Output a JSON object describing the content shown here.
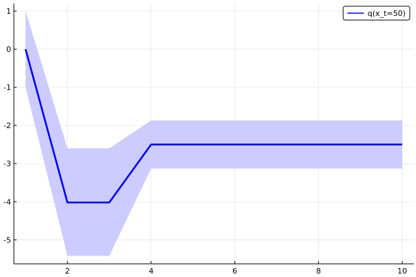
{
  "chart_data": {
    "type": "line",
    "title": "",
    "xlabel": "",
    "ylabel": "",
    "xlim": [
      0.72,
      10.28
    ],
    "ylim": [
      -5.63,
      1.2
    ],
    "grid": true,
    "legend_position": "top-right",
    "x_ticks": [
      2,
      4,
      6,
      8,
      10
    ],
    "x_tick_labels": [
      "2",
      "4",
      "6",
      "8",
      "10"
    ],
    "y_ticks": [
      1,
      0,
      -1,
      -2,
      -3,
      -4,
      -5
    ],
    "y_tick_labels": [
      "1",
      "0",
      "-1",
      "-2",
      "-3",
      "-4",
      "-5"
    ],
    "series": [
      {
        "name": "q(x_t=50)",
        "color": "#0000ff",
        "band_color": "#ccccff",
        "x": [
          1,
          2,
          3,
          4,
          5,
          6,
          7,
          8,
          9,
          10
        ],
        "y": [
          0,
          -4.02,
          -4.02,
          -2.5,
          -2.5,
          -2.5,
          -2.5,
          -2.5,
          -2.5,
          -2.5
        ],
        "lower": [
          -1.0,
          -5.42,
          -5.42,
          -3.13,
          -3.13,
          -3.13,
          -3.13,
          -3.13,
          -3.13,
          -3.13
        ],
        "upper": [
          1.0,
          -2.6,
          -2.6,
          -1.87,
          -1.87,
          -1.87,
          -1.87,
          -1.87,
          -1.87,
          -1.87
        ]
      }
    ]
  }
}
